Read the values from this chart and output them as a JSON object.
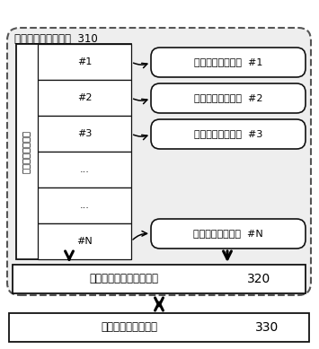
{
  "title_310": "运动行为规划调度器  310",
  "stack_label": "运动行为任务堆栈",
  "stack_items": [
    "#1",
    "#2",
    "#3",
    "...",
    "...",
    "#N"
  ],
  "module_labels": [
    "运动行为规划模块  #1",
    "运动行为规划模块  #2",
    "运动行为规划模块  #3",
    "运动行为规划模块  #N"
  ],
  "service_label": "机器人数据与控制服务层",
  "service_number": "320",
  "hardware_label": "真实机器人硬件本体",
  "hardware_number": "330",
  "bg_color": "#ffffff",
  "outer_fc": "#f0f0f0",
  "outer_ec": "#555555",
  "box_fc": "#ffffff",
  "box_ec": "#000000"
}
